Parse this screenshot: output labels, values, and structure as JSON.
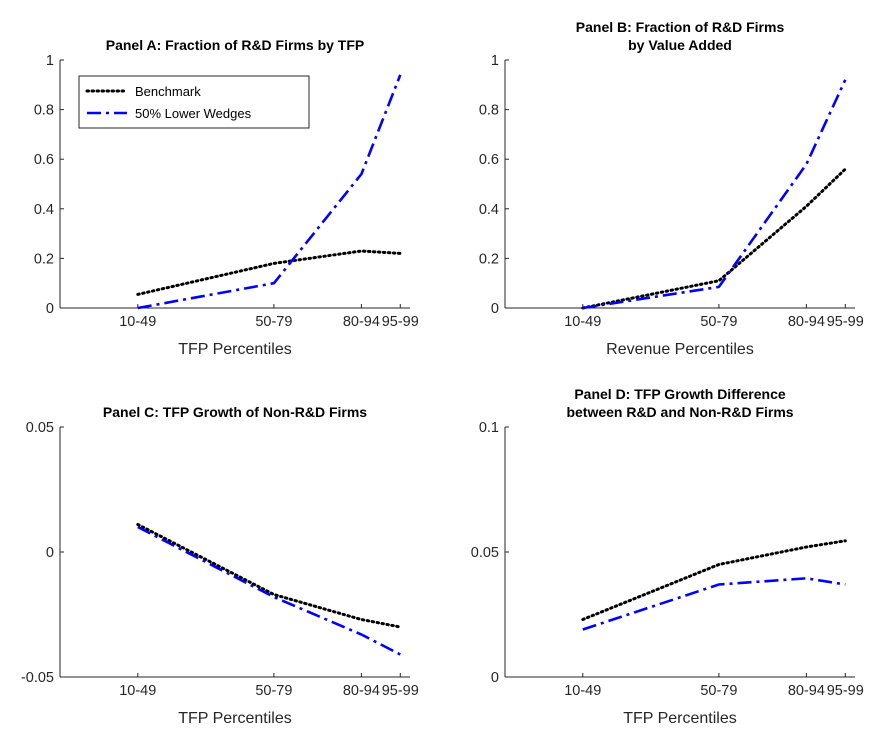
{
  "chart_data": [
    {
      "type": "line",
      "title": [
        "Panel A: Fraction of R&D Firms by TFP"
      ],
      "xlabel": "TFP Percentiles",
      "categories": [
        "10-49",
        "50-79",
        "80-94",
        "95-99"
      ],
      "x": [
        30,
        65,
        87.5,
        97.5
      ],
      "xlim": [
        10,
        100
      ],
      "ylim": [
        0,
        1
      ],
      "yticks": [
        0,
        0.2,
        0.4,
        0.6,
        0.8,
        1
      ],
      "ytick_labels": [
        "0",
        "0.2",
        "0.4",
        "0.6",
        "0.8",
        "1"
      ],
      "series": [
        {
          "name": "Benchmark",
          "style": "dotted",
          "color": "#000000",
          "values": [
            0.055,
            0.18,
            0.23,
            0.22
          ]
        },
        {
          "name": "50% Lower Wedges",
          "style": "dashdot",
          "color": "#0000ff",
          "values": [
            0.0,
            0.1,
            0.54,
            0.94
          ]
        }
      ],
      "legend": "top-left"
    },
    {
      "type": "line",
      "title": [
        "Panel B: Fraction of R&D Firms",
        "by Value Added"
      ],
      "xlabel": "Revenue Percentiles",
      "categories": [
        "10-49",
        "50-79",
        "80-94",
        "95-99"
      ],
      "x": [
        30,
        65,
        87.5,
        97.5
      ],
      "xlim": [
        10,
        100
      ],
      "ylim": [
        0,
        1
      ],
      "yticks": [
        0,
        0.2,
        0.4,
        0.6,
        0.8,
        1
      ],
      "ytick_labels": [
        "0",
        "0.2",
        "0.4",
        "0.6",
        "0.8",
        "1"
      ],
      "series": [
        {
          "name": "Benchmark",
          "style": "dotted",
          "color": "#000000",
          "values": [
            0.0,
            0.11,
            0.41,
            0.56
          ]
        },
        {
          "name": "50% Lower Wedges",
          "style": "dashdot",
          "color": "#0000ff",
          "values": [
            0.0,
            0.085,
            0.58,
            0.92
          ]
        }
      ]
    },
    {
      "type": "line",
      "title": [
        "Panel C: TFP Growth of Non-R&D Firms"
      ],
      "xlabel": "TFP Percentiles",
      "categories": [
        "10-49",
        "50-79",
        "80-94",
        "95-99"
      ],
      "x": [
        30,
        65,
        87.5,
        97.5
      ],
      "xlim": [
        10,
        100
      ],
      "ylim": [
        -0.05,
        0.05
      ],
      "yticks": [
        -0.05,
        0,
        0.05
      ],
      "ytick_labels": [
        "-0.05",
        "0",
        "0.05"
      ],
      "series": [
        {
          "name": "Benchmark",
          "style": "dotted",
          "color": "#000000",
          "values": [
            0.011,
            -0.017,
            -0.027,
            -0.03
          ]
        },
        {
          "name": "50% Lower Wedges",
          "style": "dashdot",
          "color": "#0000ff",
          "values": [
            0.01,
            -0.018,
            -0.033,
            -0.041
          ]
        }
      ]
    },
    {
      "type": "line",
      "title": [
        "Panel D: TFP Growth Difference",
        "between R&D and Non-R&D Firms"
      ],
      "xlabel": "TFP Percentiles",
      "categories": [
        "10-49",
        "50-79",
        "80-94",
        "95-99"
      ],
      "x": [
        30,
        65,
        87.5,
        97.5
      ],
      "xlim": [
        10,
        100
      ],
      "ylim": [
        0,
        0.1
      ],
      "yticks": [
        0,
        0.05,
        0.1
      ],
      "ytick_labels": [
        "0",
        "0.05",
        "0.1"
      ],
      "series": [
        {
          "name": "Benchmark",
          "style": "dotted",
          "color": "#000000",
          "values": [
            0.023,
            0.045,
            0.052,
            0.0545
          ]
        },
        {
          "name": "50% Lower Wedges",
          "style": "dashdot",
          "color": "#0000ff",
          "values": [
            0.019,
            0.037,
            0.0395,
            0.037
          ]
        }
      ]
    }
  ]
}
